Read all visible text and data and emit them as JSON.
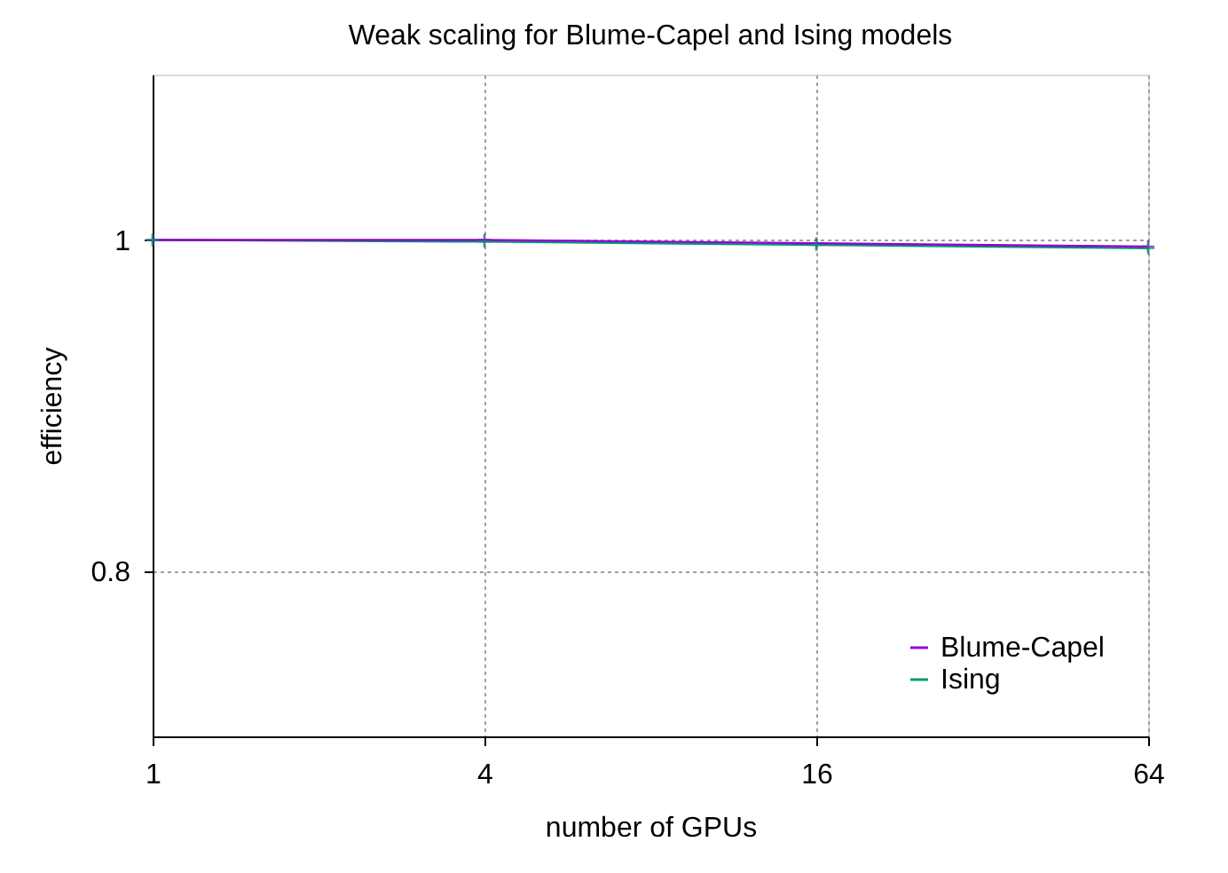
{
  "chart_data": {
    "type": "line",
    "title": "Weak scaling for Blume-Capel and Ising models",
    "xlabel": "number of GPUs",
    "ylabel": "efficiency",
    "x": [
      1,
      4,
      16,
      64
    ],
    "log": "x",
    "series": [
      {
        "name": "Blume-Capel",
        "color": "#9400d3",
        "values": [
          1.0,
          1.0,
          0.998,
          0.996
        ]
      },
      {
        "name": "Ising",
        "color": "#009e73",
        "values": [
          1.0,
          0.999,
          0.997,
          0.995
        ]
      }
    ],
    "xlim": [
      1,
      64
    ],
    "xticks": [
      1,
      4,
      16,
      64
    ],
    "ylim": [
      0.7,
      1.1
    ],
    "yticks": [
      {
        "value": 0.8,
        "label": "0.8"
      },
      {
        "value": 1,
        "label": "1"
      }
    ],
    "grid": true,
    "legend": "bottom right",
    "marker": "cross",
    "line_style": "solid"
  }
}
